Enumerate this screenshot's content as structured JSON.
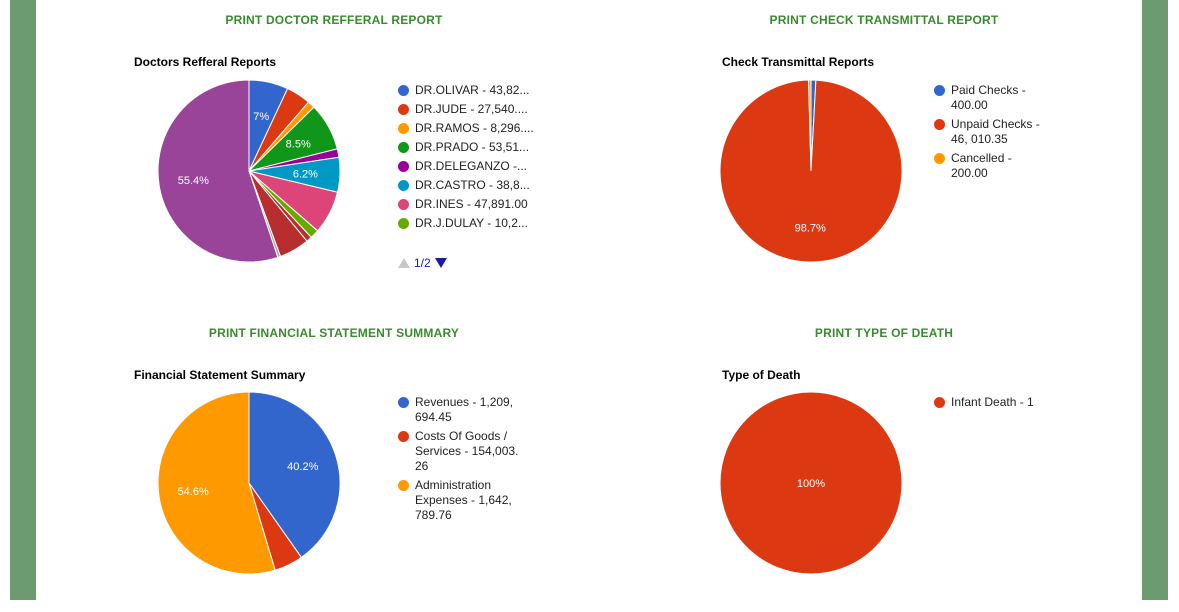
{
  "panels": {
    "doctor": {
      "link": "PRINT DOCTOR REFFERAL REPORT",
      "title": "Doctors Refferal Reports",
      "legend": [
        {
          "label": "DR.OLIVAR - 43,82...",
          "color": "#3366cc"
        },
        {
          "label": "DR.JUDE - 27,540....",
          "color": "#dc3912"
        },
        {
          "label": "DR.RAMOS - 8,296....",
          "color": "#ff9900"
        },
        {
          "label": "DR.PRADO - 53,51...",
          "color": "#109618"
        },
        {
          "label": "DR.DELEGANZO -...",
          "color": "#990099"
        },
        {
          "label": "DR.CASTRO - 38,8...",
          "color": "#0099c6"
        },
        {
          "label": "DR.INES - 47,891.00",
          "color": "#dd4477"
        },
        {
          "label": "DR.J.DULAY - 10,2...",
          "color": "#66aa00"
        }
      ],
      "pager": "1/2"
    },
    "check": {
      "link": "PRINT CHECK TRANSMITTAL REPORT",
      "title": "Check Transmittal Reports",
      "legend": [
        {
          "label": "Paid Checks - 400.00",
          "color": "#3366cc"
        },
        {
          "label": "Unpaid Checks - 46, 010.35",
          "color": "#dc3912"
        },
        {
          "label": "Cancelled - 200.00",
          "color": "#ff9900"
        }
      ]
    },
    "financial": {
      "link": "PRINT FINANCIAL STATEMENT SUMMARY",
      "title": "Financial Statement Summary",
      "legend": [
        {
          "label": "Revenues - 1,209, 694.45",
          "color": "#3366cc"
        },
        {
          "label": "Costs Of Goods / Services - 154,003. 26",
          "color": "#dc3912"
        },
        {
          "label": "Administration Expenses - 1,642, 789.76",
          "color": "#ff9900"
        }
      ]
    },
    "death": {
      "link": "PRINT TYPE OF DEATH",
      "title": "Type of Death",
      "legend": [
        {
          "label": "Infant Death - 1",
          "color": "#dc3912"
        }
      ]
    }
  },
  "chart_data": [
    {
      "type": "pie",
      "title": "Doctors Refferal Reports",
      "slices": [
        {
          "name": "DR.OLIVAR",
          "value": 7.0,
          "color": "#3366cc",
          "label": "7%"
        },
        {
          "name": "DR.JUDE",
          "value": 4.4,
          "color": "#dc3912",
          "label": ""
        },
        {
          "name": "DR.RAMOS",
          "value": 1.3,
          "color": "#ff9900",
          "label": ""
        },
        {
          "name": "DR.PRADO",
          "value": 8.5,
          "color": "#109618",
          "label": "8.5%"
        },
        {
          "name": "DR.DELEGANZO",
          "value": 1.5,
          "color": "#990099",
          "label": ""
        },
        {
          "name": "DR.CASTRO",
          "value": 6.2,
          "color": "#0099c6",
          "label": "6.2%"
        },
        {
          "name": "DR.INES",
          "value": 7.7,
          "color": "#dd4477",
          "label": ""
        },
        {
          "name": "DR.J.DULAY",
          "value": 1.6,
          "color": "#66aa00",
          "label": ""
        },
        {
          "name": "",
          "value": 1.0,
          "color": "#b82e2e",
          "label": ""
        },
        {
          "name": "",
          "value": 5.4,
          "color": "#b82e2e",
          "label": ""
        },
        {
          "name": "",
          "value": 0.5,
          "color": "#aaaaaa",
          "label": ""
        },
        {
          "name": "",
          "value": 55.4,
          "color": "#994499",
          "label": "55.4%"
        }
      ]
    },
    {
      "type": "pie",
      "title": "Check Transmittal Reports",
      "slices": [
        {
          "name": "Paid Checks",
          "value": 400.0,
          "color": "#3366cc",
          "label": ""
        },
        {
          "name": "Unpaid Checks",
          "value": 46010.35,
          "color": "#dc3912",
          "label": "98.7%"
        },
        {
          "name": "Cancelled",
          "value": 200.0,
          "color": "#ff9900",
          "label": ""
        }
      ]
    },
    {
      "type": "pie",
      "title": "Financial Statement Summary",
      "slices": [
        {
          "name": "Revenues",
          "value": 1209694.45,
          "color": "#3366cc",
          "label": "40.2%"
        },
        {
          "name": "Costs Of Goods / Services",
          "value": 154003.26,
          "color": "#dc3912",
          "label": ""
        },
        {
          "name": "Administration Expenses",
          "value": 1642789.76,
          "color": "#ff9900",
          "label": "54.6%"
        }
      ]
    },
    {
      "type": "pie",
      "title": "Type of Death",
      "slices": [
        {
          "name": "Infant Death",
          "value": 1,
          "color": "#dc3912",
          "label": "100%"
        }
      ]
    }
  ]
}
